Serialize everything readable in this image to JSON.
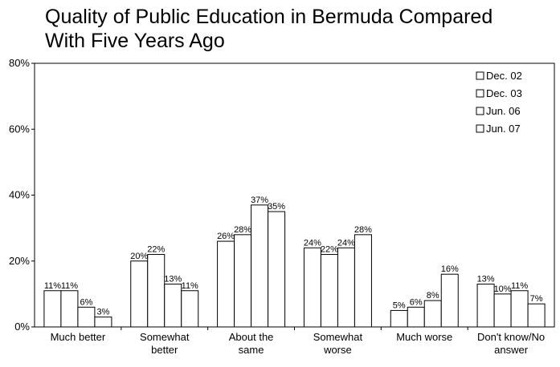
{
  "chart_data": {
    "type": "bar",
    "title_lines": [
      "Quality of Public Education in Bermuda Compared",
      "With Five Years Ago"
    ],
    "categories": [
      [
        "Much better"
      ],
      [
        "Somewhat",
        "better"
      ],
      [
        "About the",
        "same"
      ],
      [
        "Somewhat",
        "worse"
      ],
      [
        "Much worse"
      ],
      [
        "Don't know/No",
        "answer"
      ]
    ],
    "series": [
      {
        "name": "Dec. 02",
        "values": [
          11,
          20,
          26,
          24,
          5,
          13
        ]
      },
      {
        "name": "Dec. 03",
        "values": [
          11,
          22,
          28,
          22,
          6,
          10
        ]
      },
      {
        "name": "Jun. 06",
        "values": [
          6,
          13,
          37,
          24,
          8,
          11
        ]
      },
      {
        "name": "Jun. 07",
        "values": [
          3,
          11,
          35,
          28,
          16,
          7
        ]
      }
    ],
    "value_suffix": "%",
    "yticks": [
      "0%",
      "20%",
      "40%",
      "60%",
      "80%"
    ],
    "ylim": [
      0,
      80
    ],
    "grid": false,
    "legend_position": "top-right",
    "colors": {
      "bar_fill": "#ffffff",
      "bar_stroke": "#000000",
      "axis": "#000000"
    }
  }
}
